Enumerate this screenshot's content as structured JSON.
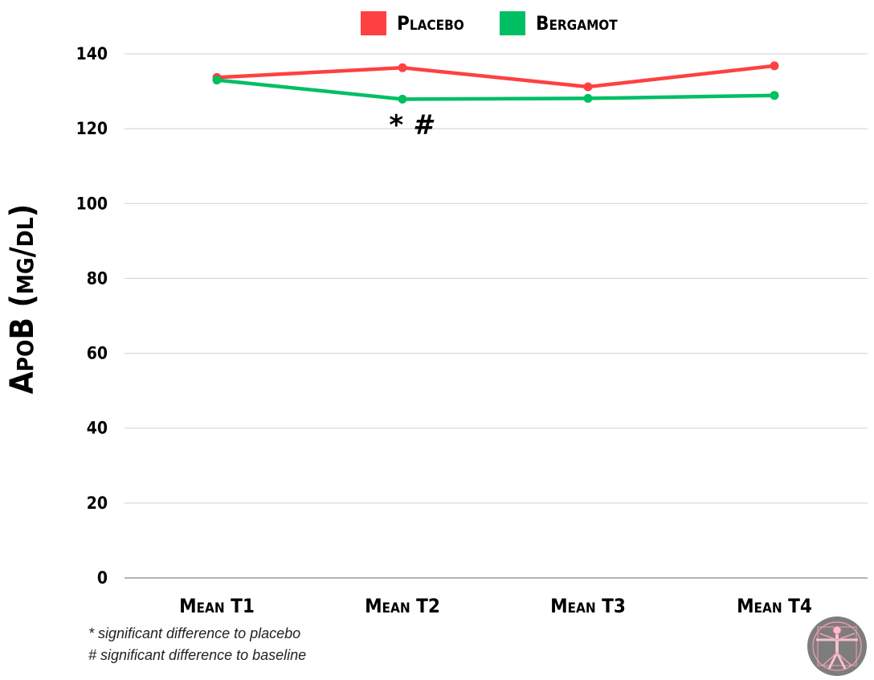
{
  "chart_data": {
    "type": "line",
    "categories": [
      "Mean T1",
      "Mean T2",
      "Mean T3",
      "Mean T4"
    ],
    "series": [
      {
        "name": "Placebo",
        "values": [
          133.7,
          136.3,
          131.2,
          136.8
        ]
      },
      {
        "name": "Bergamot",
        "values": [
          133.0,
          127.9,
          128.1,
          128.9
        ]
      }
    ],
    "title": "",
    "xlabel": "",
    "ylabel": "ApoB (mg/dl)",
    "ylim": [
      0,
      140
    ],
    "yticks": [
      0,
      20,
      40,
      60,
      80,
      100,
      120,
      140
    ],
    "grid": true,
    "legend_position": "top-center",
    "colors": {
      "Placebo": "#ff4040",
      "Bergamot": "#00bf63"
    },
    "annotations": [
      {
        "text": "* #",
        "category": "Mean T2",
        "y": 120
      }
    ]
  },
  "footnotes": [
    "* significant difference to placebo",
    "# significant difference to baseline"
  ],
  "logo": {
    "icon": "vitruvian-man-icon"
  }
}
